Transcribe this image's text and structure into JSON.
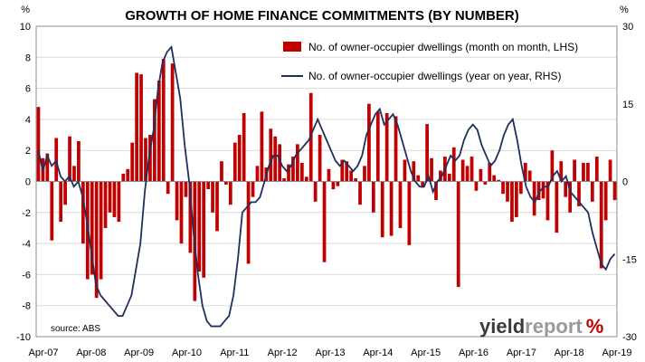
{
  "colors": {
    "bar": "#c00000",
    "line": "#1f2f5e",
    "grid": "#d9d9d9",
    "brand_dark": "#3a3a3a",
    "brand_grey": "#9a9a9a",
    "brand_accent": "#c00000"
  },
  "brand": {
    "part1": "yield",
    "part2": "report",
    "symbol": "%"
  },
  "chart_data": {
    "type": "bar+line",
    "title": "GROWTH OF HOME FINANCE COMMITMENTS (BY NUMBER)",
    "source": "source: ABS",
    "left_unit": "%",
    "right_unit": "%",
    "ylim_left": [
      -10,
      10
    ],
    "ylim_right": [
      -30,
      30
    ],
    "yticks_left": [
      "10",
      "8",
      "6",
      "4",
      "2",
      "0",
      "-2",
      "-4",
      "-6",
      "-8",
      "-10"
    ],
    "yticks_right": [
      "30",
      "15",
      "0",
      "-15",
      "-30"
    ],
    "xticks": [
      "Apr-07",
      "Apr-08",
      "Apr-09",
      "Apr-10",
      "Apr-11",
      "Apr-12",
      "Apr-13",
      "Apr-14",
      "Apr-15",
      "Apr-16",
      "Apr-17",
      "Apr-18",
      "Apr-19"
    ],
    "legend_position": "top-right",
    "series": [
      {
        "name": "No. of owner-occupier dwellings (month on month, LHS)",
        "kind": "bar",
        "axis": "left",
        "values": [
          4.8,
          1.5,
          1.8,
          -3.8,
          2.8,
          -2.6,
          -1.5,
          2.9,
          1.0,
          2.6,
          -4.0,
          -6.3,
          -6.0,
          -7.5,
          -6.3,
          -3.0,
          -2.0,
          -2.3,
          -2.6,
          0.5,
          0.8,
          2.5,
          7.0,
          6.9,
          2.8,
          3.0,
          5.3,
          6.5,
          7.9,
          -0.8,
          7.6,
          -2.5,
          -4.0,
          -1.0,
          -4.6,
          -7.7,
          -5.8,
          -6.2,
          -0.5,
          -2.0,
          -3.2,
          1.3,
          -0.2,
          -1.5,
          2.5,
          3.0,
          4.4,
          -5.3,
          -1.0,
          1.0,
          4.5,
          0.9,
          3.4,
          2.9,
          2.4,
          0.2,
          1.1,
          1.6,
          2.4,
          1.2,
          0.3,
          5.7,
          -1.3,
          3.0,
          -5.2,
          0.8,
          -0.5,
          -0.3,
          1.4,
          1.3,
          0.7,
          0.2,
          -1.5,
          1.0,
          5.0,
          -2.0,
          4.5,
          -3.6,
          4.4,
          -3.5,
          4.2,
          -3.0,
          1.4,
          -4.1,
          1.3,
          0.4,
          -0.4,
          3.7,
          1.5,
          -1.2,
          0.7,
          1.6,
          0.5,
          2.2,
          -6.8,
          1.4,
          1.0,
          1.6,
          -0.6,
          0.8,
          -0.2,
          1.2,
          0.4,
          0.1,
          -0.8,
          -1.3,
          -2.6,
          -2.3,
          -0.8,
          1.2,
          0.7,
          -2.2,
          -1.2,
          -1.1,
          -2.5,
          2.0,
          -3.3,
          1.3,
          -1.0,
          -2.0,
          1.4,
          -1.6,
          1.2,
          1.2,
          -1.3,
          1.6,
          -5.6,
          -2.5,
          1.4,
          -1.2
        ]
      },
      {
        "name": "No. of owner-occupier dwellings (year on year, RHS)",
        "kind": "line",
        "axis": "right",
        "values": [
          6,
          2,
          5,
          3,
          4,
          1,
          0,
          1,
          -1,
          0,
          -3,
          -8,
          -14,
          -20,
          -22,
          -23,
          -24,
          -25,
          -26,
          -26,
          -24,
          -22,
          -17,
          -12,
          -2,
          5,
          10,
          18,
          23,
          25,
          26,
          21,
          16,
          7,
          0,
          -10,
          -18,
          -24,
          -27,
          -28,
          -28,
          -28,
          -27,
          -26,
          -22,
          -15,
          -6,
          -5,
          -4,
          -4,
          -3,
          0,
          3,
          5,
          5,
          3,
          2,
          3,
          5,
          6,
          7,
          8,
          10,
          12,
          10,
          8,
          6,
          4,
          3,
          4,
          3,
          2,
          3,
          5,
          9,
          11,
          13,
          14,
          11,
          12,
          13,
          11,
          8,
          5,
          2,
          0,
          -1,
          -1,
          1,
          -2,
          0,
          1,
          3,
          5,
          4,
          5,
          8,
          10,
          11,
          10,
          7,
          5,
          3,
          4,
          6,
          9,
          11,
          12,
          8,
          3,
          -1,
          -3,
          -4,
          -2,
          -1,
          -1,
          1,
          2,
          0,
          1,
          -2,
          -3,
          -4,
          -5,
          -6,
          -10,
          -13,
          -16,
          -17,
          -15,
          -14
        ]
      }
    ]
  }
}
